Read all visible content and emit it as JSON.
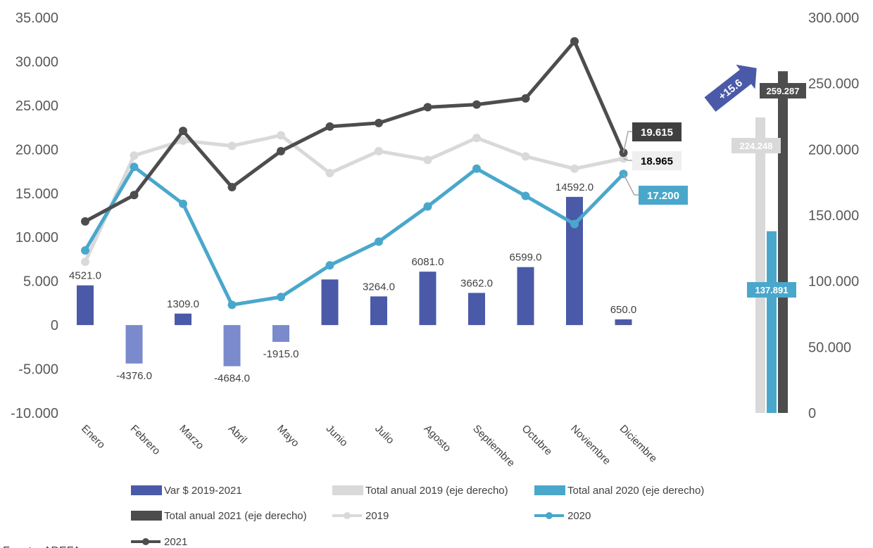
{
  "chart_data": {
    "type": "bar",
    "categories": [
      "Enero",
      "Febrero",
      "Marzo",
      "Abril",
      "Mayo",
      "Junio",
      "Julio",
      "Agosto",
      "Septiembre",
      "Octubre",
      "Noviembre",
      "Diciembre"
    ],
    "left_axis": {
      "ticks": [
        "35.000",
        "30.000",
        "25.000",
        "20.000",
        "15.000",
        "10.000",
        "5.000",
        "0",
        "-5.000",
        "-10.000"
      ],
      "ylim": [
        -10000,
        35000
      ]
    },
    "right_axis": {
      "ticks": [
        "300.000",
        "250.000",
        "200.000",
        "150.000",
        "100.000",
        "50.000",
        "0"
      ],
      "ylim": [
        0,
        300000
      ]
    },
    "bars": {
      "name": "Var $ 2019-2021",
      "values": [
        4521.0,
        -4376.0,
        1309.0,
        -4684.0,
        -1915.0,
        5192,
        3264.0,
        6081.0,
        3662.0,
        6599.0,
        14592.0,
        650.0
      ],
      "labels": [
        "4521.0",
        "-4376.0",
        "1309.0",
        "-4684.0",
        "-1915.0",
        "",
        "3264.0",
        "6081.0",
        "3662.0",
        "6599.0",
        "14592.0",
        "650.0"
      ],
      "color_positive": "#4a5aa8",
      "color_negative": "#7b8acc"
    },
    "series": [
      {
        "name": "2019",
        "color": "#d9d9d9",
        "values": [
          7200,
          19300,
          21000,
          20400,
          21600,
          17300,
          19800,
          18800,
          21300,
          19200,
          17800,
          18965
        ]
      },
      {
        "name": "2020",
        "color": "#4aa7cc",
        "values": [
          8500,
          18000,
          13800,
          2300,
          3200,
          6800,
          9500,
          13500,
          17800,
          14700,
          11500,
          17200
        ]
      },
      {
        "name": "2021",
        "color": "#4d4d4d",
        "values": [
          11800,
          14800,
          22100,
          15700,
          19800,
          22600,
          23000,
          24800,
          25100,
          25800,
          32300,
          19615
        ]
      }
    ],
    "callouts": [
      {
        "series": "2021",
        "text": "19.615",
        "bg": "#404040",
        "fg": "#ffffff"
      },
      {
        "series": "2019",
        "text": "18.965",
        "bg": "#efefef",
        "fg": "#000000"
      },
      {
        "series": "2020",
        "text": "17.200",
        "bg": "#4aa7cc",
        "fg": "#ffffff"
      }
    ],
    "annual_totals": [
      {
        "name": "Total anual 2019 (eje derecho)",
        "value": 224248,
        "label": "224.248",
        "color": "#d9d9d9"
      },
      {
        "name": "Total anal 2020 (eje derecho)",
        "value": 137891,
        "label": "137.891",
        "color": "#4aa7cc"
      },
      {
        "name": "Total anual 2021 (eje derecho)",
        "value": 259287,
        "label": "259.287",
        "color": "#4d4d4d"
      }
    ],
    "growth_badge": {
      "text": "+15.6",
      "color": "#4a5aa8"
    },
    "legend": [
      {
        "type": "bar",
        "name": "Var $ 2019-2021",
        "color": "#4a5aa8"
      },
      {
        "type": "bar",
        "name": "Total anual 2019 (eje derecho)",
        "color": "#d9d9d9"
      },
      {
        "type": "bar",
        "name": "Total anal 2020 (eje derecho)",
        "color": "#4aa7cc"
      },
      {
        "type": "bar",
        "name": "Total anual 2021 (eje derecho)",
        "color": "#4d4d4d"
      },
      {
        "type": "line",
        "name": "2019",
        "color": "#d9d9d9"
      },
      {
        "type": "line",
        "name": "2020",
        "color": "#4aa7cc"
      },
      {
        "type": "line",
        "name": "2021",
        "color": "#4d4d4d"
      }
    ],
    "source": "Fuente: ADEFA"
  }
}
